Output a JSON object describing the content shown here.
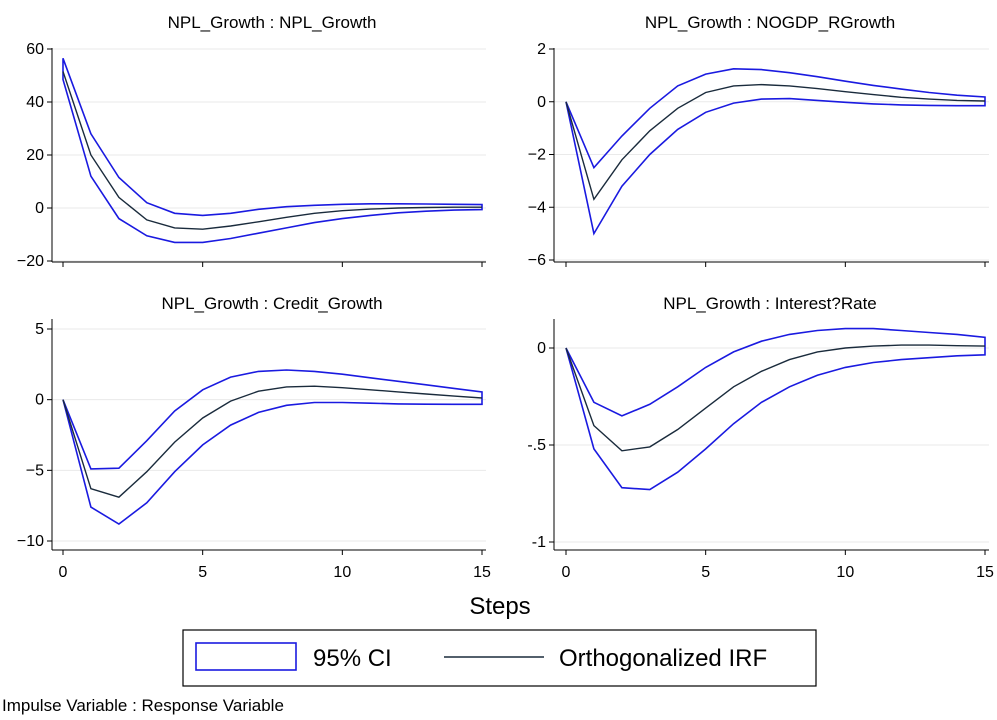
{
  "x_axis_title": "Steps",
  "note": "Impulse Variable : Response Variable",
  "legend": {
    "items": [
      {
        "label": "95% CI",
        "color": "#1a1ae0",
        "symbol": "box"
      },
      {
        "label": "Orthogonalized IRF",
        "color": "#1a2b3c",
        "symbol": "line"
      }
    ]
  },
  "chart_data": [
    {
      "type": "line",
      "title": "NPL_Growth : NPL_Growth",
      "x": [
        0,
        1,
        2,
        3,
        4,
        5,
        6,
        7,
        8,
        9,
        10,
        11,
        12,
        13,
        14,
        15
      ],
      "xlim": [
        0,
        15
      ],
      "xticks": [
        0,
        5,
        10,
        15
      ],
      "ylim": [
        -20,
        60
      ],
      "yticks": [
        -20,
        0,
        20,
        40,
        60
      ],
      "ytick_labels": [
        "−20",
        "0",
        "20",
        "40",
        "60"
      ],
      "series": [
        {
          "name": "Orthogonalized IRF",
          "values": [
            51.5,
            20,
            4,
            -4.5,
            -7.5,
            -8,
            -6.8,
            -5.2,
            -3.5,
            -2,
            -1,
            -0.4,
            0,
            0.2,
            0.3,
            0.3
          ]
        },
        {
          "name": "95% CI",
          "upper": [
            56.5,
            28,
            11.5,
            2,
            -2,
            -2.8,
            -2,
            -0.5,
            0.5,
            1,
            1.4,
            1.6,
            1.6,
            1.5,
            1.4,
            1.3
          ],
          "lower": [
            48.5,
            12,
            -4,
            -10.5,
            -13,
            -13,
            -11.5,
            -9.5,
            -7.5,
            -5.5,
            -4,
            -2.8,
            -1.8,
            -1.2,
            -0.8,
            -0.6
          ]
        }
      ]
    },
    {
      "type": "line",
      "title": "NPL_Growth : NOGDP_RGrowth",
      "x": [
        0,
        1,
        2,
        3,
        4,
        5,
        6,
        7,
        8,
        9,
        10,
        11,
        12,
        13,
        14,
        15
      ],
      "xlim": [
        0,
        15
      ],
      "xticks": [
        0,
        5,
        10,
        15
      ],
      "ylim": [
        -6,
        2
      ],
      "yticks": [
        -6,
        -4,
        -2,
        0,
        2
      ],
      "ytick_labels": [
        "−6",
        "−4",
        "−2",
        "0",
        "2"
      ],
      "series": [
        {
          "name": "Orthogonalized IRF",
          "values": [
            0,
            -3.7,
            -2.2,
            -1.1,
            -0.25,
            0.35,
            0.6,
            0.65,
            0.6,
            0.5,
            0.38,
            0.27,
            0.17,
            0.1,
            0.05,
            0.03
          ]
        },
        {
          "name": "95% CI",
          "upper": [
            0,
            -2.5,
            -1.3,
            -0.25,
            0.6,
            1.05,
            1.25,
            1.22,
            1.1,
            0.95,
            0.78,
            0.62,
            0.48,
            0.35,
            0.25,
            0.18
          ],
          "lower": [
            0,
            -5,
            -3.2,
            -2,
            -1.05,
            -0.4,
            -0.05,
            0.1,
            0.12,
            0.05,
            -0.02,
            -0.08,
            -0.12,
            -0.14,
            -0.15,
            -0.15
          ]
        }
      ]
    },
    {
      "type": "line",
      "title": "NPL_Growth : Credit_Growth",
      "x": [
        0,
        1,
        2,
        3,
        4,
        5,
        6,
        7,
        8,
        9,
        10,
        11,
        12,
        13,
        14,
        15
      ],
      "xlim": [
        0,
        15
      ],
      "xticks": [
        0,
        5,
        10,
        15
      ],
      "ylim": [
        -10,
        5
      ],
      "yticks": [
        -10,
        -5,
        0,
        5
      ],
      "ytick_labels": [
        "−10",
        "−5",
        "0",
        "5"
      ],
      "series": [
        {
          "name": "Orthogonalized IRF",
          "values": [
            0,
            -6.3,
            -6.9,
            -5.1,
            -3,
            -1.3,
            -0.1,
            0.6,
            0.9,
            0.95,
            0.85,
            0.7,
            0.55,
            0.4,
            0.25,
            0.12
          ]
        },
        {
          "name": "95% CI",
          "upper": [
            0,
            -4.9,
            -4.85,
            -2.9,
            -0.8,
            0.7,
            1.6,
            2,
            2.1,
            2,
            1.8,
            1.55,
            1.3,
            1.05,
            0.8,
            0.55
          ],
          "lower": [
            0,
            -7.6,
            -8.8,
            -7.3,
            -5.1,
            -3.2,
            -1.8,
            -0.9,
            -0.4,
            -0.2,
            -0.2,
            -0.25,
            -0.3,
            -0.32,
            -0.33,
            -0.33
          ]
        }
      ]
    },
    {
      "type": "line",
      "title": "NPL_Growth : Interest?Rate",
      "x": [
        0,
        1,
        2,
        3,
        4,
        5,
        6,
        7,
        8,
        9,
        10,
        11,
        12,
        13,
        14,
        15
      ],
      "xlim": [
        0,
        15
      ],
      "xticks": [
        0,
        5,
        10,
        15
      ],
      "ylim": [
        -1,
        0
      ],
      "yticks": [
        -1,
        -0.5,
        0
      ],
      "ytick_labels": [
        "-1",
        "-.5",
        "0"
      ],
      "series": [
        {
          "name": "Orthogonalized IRF",
          "values": [
            0,
            -0.4,
            -0.53,
            -0.51,
            -0.42,
            -0.31,
            -0.2,
            -0.12,
            -0.06,
            -0.02,
            0,
            0.01,
            0.015,
            0.015,
            0.012,
            0.01
          ]
        },
        {
          "name": "95% CI",
          "upper": [
            0,
            -0.28,
            -0.35,
            -0.29,
            -0.2,
            -0.1,
            -0.02,
            0.035,
            0.07,
            0.09,
            0.1,
            0.1,
            0.09,
            0.08,
            0.07,
            0.055
          ],
          "lower": [
            0,
            -0.52,
            -0.72,
            -0.73,
            -0.64,
            -0.52,
            -0.39,
            -0.28,
            -0.2,
            -0.14,
            -0.1,
            -0.075,
            -0.06,
            -0.05,
            -0.04,
            -0.035
          ]
        }
      ]
    }
  ]
}
